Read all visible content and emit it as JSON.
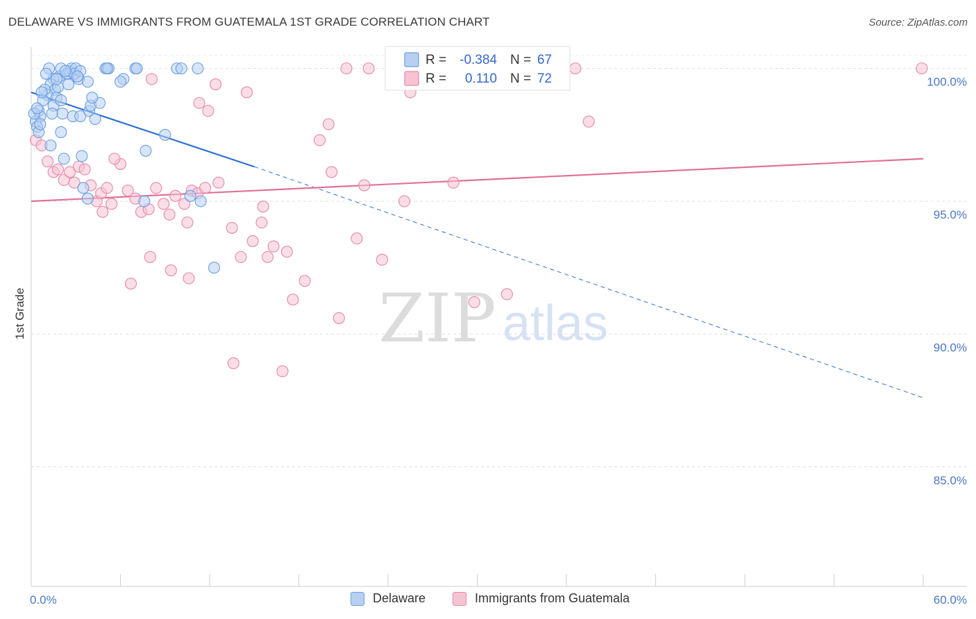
{
  "title": "DELAWARE VS IMMIGRANTS FROM GUATEMALA 1ST GRADE CORRELATION CHART",
  "source": "Source: ZipAtlas.com",
  "watermark": {
    "zip": "ZIP",
    "atlas": "atlas"
  },
  "legend": {
    "r_label": "R =",
    "n_label": "N =",
    "rows": [
      {
        "r": "-0.384",
        "n": "67"
      },
      {
        "r": "0.110",
        "n": "72"
      }
    ]
  },
  "colors": {
    "delaware": "#6a9de0",
    "delaware_fill": "#b7d0f2",
    "guatemala": "#e687a6",
    "guatemala_fill": "#f6c3d3",
    "delaware_line": "#2e6fd0",
    "guatemala_line": "#e2709a",
    "tick_text": "#4a78c6"
  },
  "chart_data": {
    "type": "scatter",
    "title": "DELAWARE VS IMMIGRANTS FROM GUATEMALA 1ST GRADE CORRELATION CHART",
    "xlabel": "",
    "ylabel": "1st Grade",
    "xlim": [
      0,
      60
    ],
    "ylim": [
      80.5,
      100.8
    ],
    "x_tick_labels": [
      "0.0%",
      "60.0%"
    ],
    "y_ticks": [
      85,
      90,
      95,
      100
    ],
    "y_tick_labels": [
      "85.0%",
      "90.0%",
      "95.0%",
      "100.0%"
    ],
    "grid": true,
    "legend_position": "top-center",
    "series": [
      {
        "name": "Delaware",
        "r": -0.384,
        "n": 67,
        "trend": {
          "x0": 0,
          "y0": 99.1,
          "x1": 15,
          "y1": 96.3,
          "dash_to_x": 60,
          "dash_to_y": 87.6
        },
        "points": [
          [
            1.2,
            100
          ],
          [
            1.9,
            99.7
          ],
          [
            1.5,
            99.6
          ],
          [
            2.0,
            100
          ],
          [
            2.5,
            99.8
          ],
          [
            2.6,
            99.9
          ],
          [
            2.7,
            100
          ],
          [
            3.0,
            100
          ],
          [
            3.2,
            99.6
          ],
          [
            2.4,
            99.8
          ],
          [
            2.9,
            99.8
          ],
          [
            3.3,
            99.9
          ],
          [
            5.0,
            100
          ],
          [
            5.2,
            100
          ],
          [
            7.0,
            100
          ],
          [
            5.1,
            100
          ],
          [
            7.1,
            100
          ],
          [
            9.8,
            100
          ],
          [
            10.1,
            100
          ],
          [
            11.2,
            100
          ],
          [
            1.3,
            99.4
          ],
          [
            1.6,
            99.2
          ],
          [
            1.1,
            99.0
          ],
          [
            0.8,
            98.8
          ],
          [
            1.7,
            98.9
          ],
          [
            0.5,
            98.4
          ],
          [
            0.6,
            98.2
          ],
          [
            0.3,
            98.0
          ],
          [
            0.4,
            97.8
          ],
          [
            0.5,
            97.6
          ],
          [
            1.8,
            99.3
          ],
          [
            2.5,
            99.4
          ],
          [
            3.8,
            99.5
          ],
          [
            6.2,
            99.6
          ],
          [
            6.0,
            99.5
          ],
          [
            2.8,
            98.2
          ],
          [
            3.3,
            98.2
          ],
          [
            3.9,
            98.4
          ],
          [
            4.0,
            98.6
          ],
          [
            4.3,
            98.1
          ],
          [
            4.6,
            98.7
          ],
          [
            4.1,
            98.9
          ],
          [
            1.5,
            98.6
          ],
          [
            2.1,
            98.3
          ],
          [
            2.0,
            97.6
          ],
          [
            1.3,
            97.1
          ],
          [
            2.2,
            96.6
          ],
          [
            3.4,
            96.7
          ],
          [
            9.0,
            97.5
          ],
          [
            7.7,
            96.9
          ],
          [
            3.5,
            95.5
          ],
          [
            3.8,
            95.1
          ],
          [
            7.6,
            95.0
          ],
          [
            10.7,
            95.2
          ],
          [
            11.4,
            95.0
          ],
          [
            12.3,
            92.5
          ],
          [
            0.2,
            98.3
          ],
          [
            0.4,
            98.5
          ],
          [
            0.6,
            97.9
          ],
          [
            1.0,
            99.8
          ],
          [
            2.3,
            99.9
          ],
          [
            3.1,
            99.7
          ],
          [
            0.9,
            99.2
          ],
          [
            2.0,
            98.8
          ],
          [
            1.4,
            98.3
          ],
          [
            0.7,
            99.1
          ],
          [
            1.7,
            99.6
          ]
        ]
      },
      {
        "name": "Immigrants from Guatemala",
        "r": 0.11,
        "n": 72,
        "trend": {
          "x0": 0,
          "y0": 95.0,
          "x1": 60,
          "y1": 96.6
        },
        "points": [
          [
            0.3,
            97.3
          ],
          [
            0.7,
            97.1
          ],
          [
            1.1,
            96.5
          ],
          [
            1.5,
            96.1
          ],
          [
            1.8,
            96.2
          ],
          [
            2.2,
            95.8
          ],
          [
            2.6,
            96.1
          ],
          [
            2.9,
            95.7
          ],
          [
            3.2,
            96.3
          ],
          [
            3.6,
            96.2
          ],
          [
            4.0,
            95.6
          ],
          [
            4.4,
            95.0
          ],
          [
            4.7,
            95.3
          ],
          [
            5.1,
            95.5
          ],
          [
            5.4,
            94.9
          ],
          [
            6.0,
            96.4
          ],
          [
            6.5,
            95.4
          ],
          [
            7.0,
            95.1
          ],
          [
            7.4,
            94.6
          ],
          [
            7.9,
            94.7
          ],
          [
            8.4,
            95.5
          ],
          [
            8.9,
            94.9
          ],
          [
            9.3,
            94.5
          ],
          [
            9.7,
            95.2
          ],
          [
            10.3,
            94.9
          ],
          [
            10.8,
            95.4
          ],
          [
            11.2,
            95.3
          ],
          [
            11.7,
            95.5
          ],
          [
            12.4,
            99.4
          ],
          [
            11.3,
            98.7
          ],
          [
            12.6,
            95.7
          ],
          [
            13.5,
            94.0
          ],
          [
            14.1,
            92.9
          ],
          [
            14.9,
            93.5
          ],
          [
            15.5,
            94.2
          ],
          [
            15.9,
            92.9
          ],
          [
            16.3,
            93.3
          ],
          [
            17.2,
            93.1
          ],
          [
            17.6,
            91.3
          ],
          [
            18.4,
            92.0
          ],
          [
            19.4,
            97.3
          ],
          [
            20.0,
            97.9
          ],
          [
            20.2,
            96.1
          ],
          [
            20.7,
            90.6
          ],
          [
            21.2,
            100
          ],
          [
            22.7,
            100
          ],
          [
            22.4,
            95.6
          ],
          [
            21.9,
            93.6
          ],
          [
            23.6,
            92.8
          ],
          [
            25.1,
            95.0
          ],
          [
            25.5,
            99.1
          ],
          [
            26.1,
            100
          ],
          [
            28.4,
            95.7
          ],
          [
            29.8,
            91.2
          ],
          [
            32.0,
            91.5
          ],
          [
            33.0,
            100
          ],
          [
            36.6,
            100
          ],
          [
            37.5,
            98.0
          ],
          [
            59.9,
            100
          ],
          [
            8.0,
            92.9
          ],
          [
            9.4,
            92.4
          ],
          [
            10.6,
            92.1
          ],
          [
            13.6,
            88.9
          ],
          [
            16.9,
            88.6
          ],
          [
            6.7,
            91.9
          ],
          [
            15.6,
            94.8
          ],
          [
            10.5,
            94.2
          ],
          [
            8.1,
            99.6
          ],
          [
            11.9,
            98.4
          ],
          [
            14.5,
            99.1
          ],
          [
            5.6,
            96.6
          ],
          [
            4.8,
            94.6
          ]
        ]
      }
    ]
  }
}
